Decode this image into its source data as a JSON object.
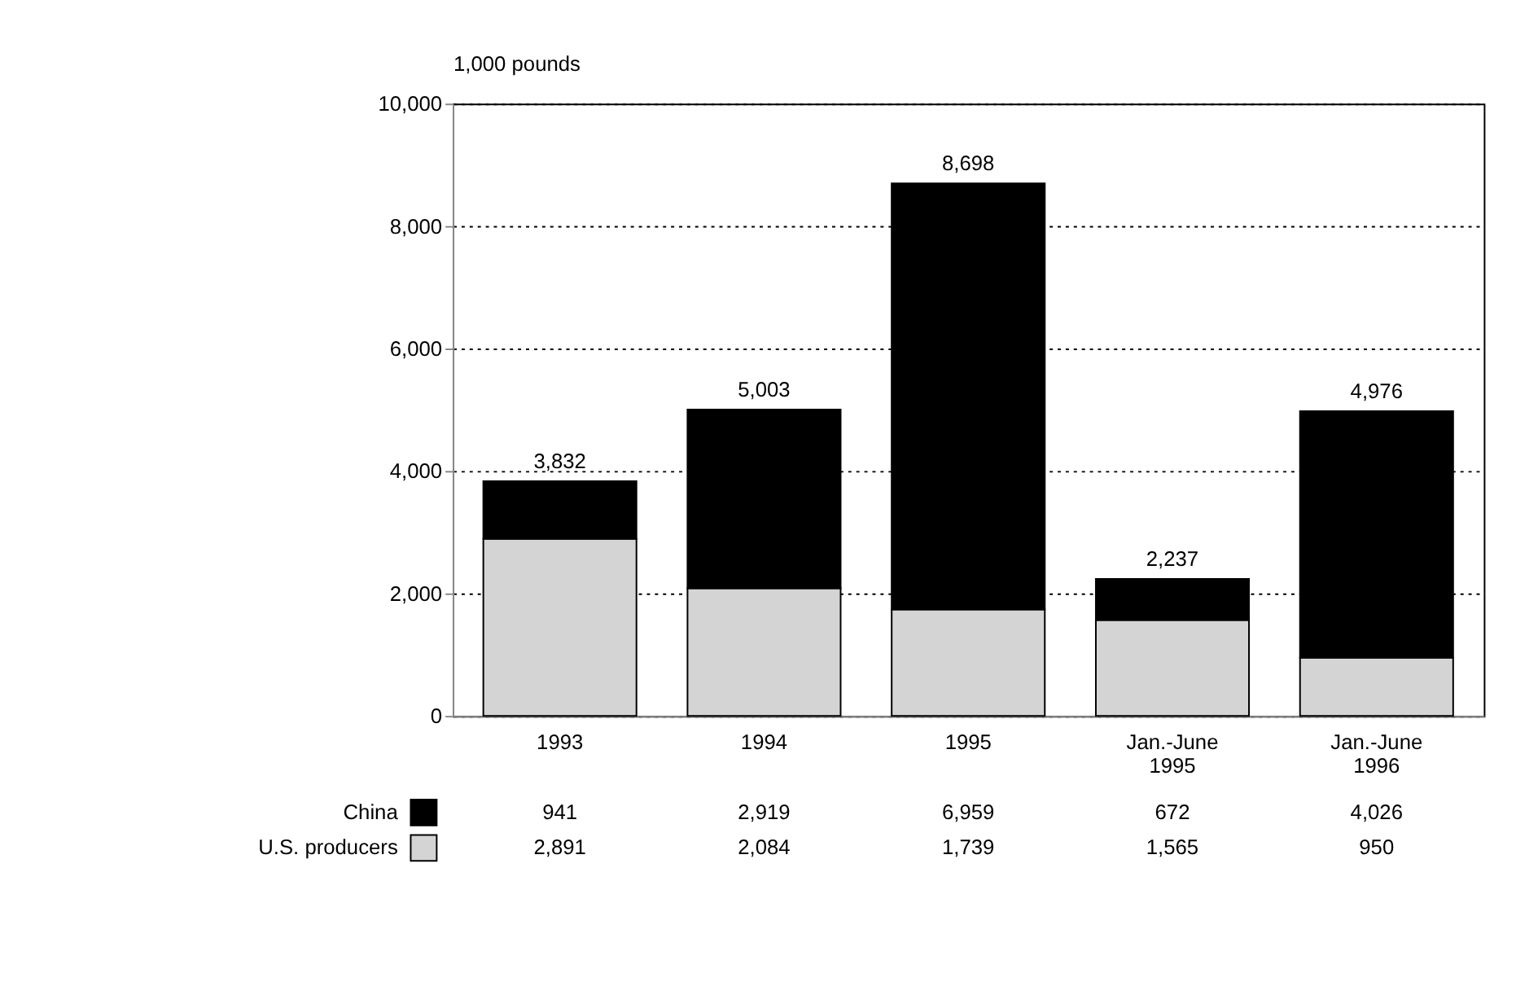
{
  "chart_data": {
    "type": "bar",
    "stacked": true,
    "ylabel": "1,000 pounds",
    "categories": [
      "1993",
      "1994",
      "1995",
      "Jan.-June 1995",
      "Jan.-June 1996"
    ],
    "series": [
      {
        "name": "U.S. producers",
        "color": "#d4d4d4",
        "values": [
          2891,
          2084,
          1739,
          1565,
          950
        ],
        "value_labels": [
          "2,891",
          "2,084",
          "1,739",
          "1,565",
          "950"
        ]
      },
      {
        "name": "China",
        "color": "#000000",
        "values": [
          941,
          2919,
          6959,
          672,
          4026
        ],
        "value_labels": [
          "941",
          "2,919",
          "6,959",
          "672",
          "4,026"
        ]
      }
    ],
    "totals": [
      "3,832",
      "5,003",
      "8,698",
      "2,237",
      "4,976"
    ],
    "ylim": [
      0,
      10000
    ],
    "yticks": [
      0,
      {
        "value": 2000,
        "label": "2,000"
      },
      {
        "value": 4000,
        "label": "4,000"
      },
      {
        "value": 6000,
        "label": "6,000"
      },
      {
        "value": 8000,
        "label": "8,000"
      },
      {
        "value": 10000,
        "label": "10,000"
      }
    ],
    "grid": "y",
    "legend": "bottom left"
  }
}
